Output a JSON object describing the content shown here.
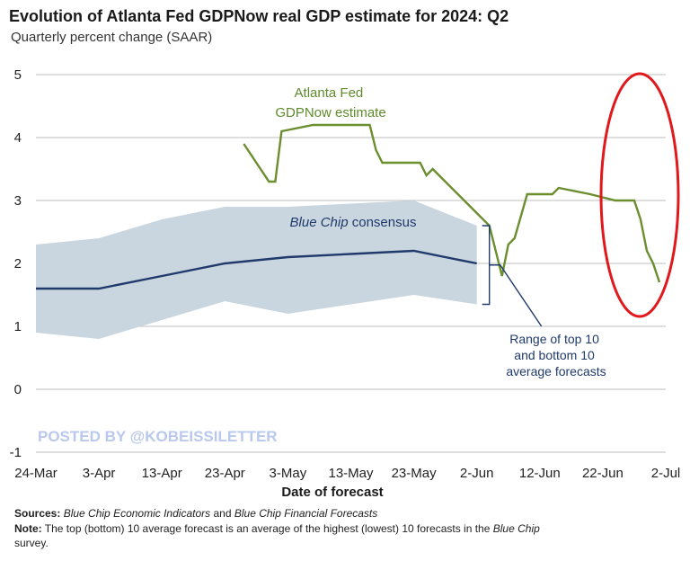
{
  "title": "Evolution of Atlanta Fed GDPNow real GDP estimate for 2024: Q2",
  "subtitle": "Quarterly percent change (SAAR)",
  "watermark": "POSTED BY @KOBEISSILETTER",
  "footer": {
    "sources_label": "Sources:",
    "sources_text_1": "Blue Chip Economic Indicators",
    "sources_and": "and",
    "sources_text_2": "Blue Chip Financial Forecasts",
    "note_label": "Note:",
    "note_text_1": "The top (bottom) 10 average forecast is an average of the highest (lowest) 10 forecasts in the",
    "note_italic": "Blue Chip",
    "note_text_2": "survey."
  },
  "colors": {
    "gdpnow": "#6b8e2f",
    "consensus": "#1f3a6b",
    "band": "#c9d6df",
    "annotation_ring": "#e0191c"
  },
  "chart_data": {
    "type": "line",
    "xlabel": "Date of forecast",
    "ylabel": "",
    "x_ticks": [
      "24-Mar",
      "3-Apr",
      "13-Apr",
      "23-Apr",
      "3-May",
      "13-May",
      "23-May",
      "2-Jun",
      "12-Jun",
      "22-Jun",
      "2-Jul"
    ],
    "y_ticks": [
      -1,
      0,
      1,
      2,
      3,
      4,
      5
    ],
    "ylim": [
      -1,
      5
    ],
    "grid": true,
    "series": [
      {
        "name": "Atlanta Fed GDPNow estimate",
        "label_lines": [
          "Atlanta Fed",
          "GDPNow estimate"
        ],
        "x": [
          "2024-04-26",
          "2024-04-30",
          "2024-05-01",
          "2024-05-02",
          "2024-05-07",
          "2024-05-09",
          "2024-05-16",
          "2024-05-17",
          "2024-05-18",
          "2024-05-24",
          "2024-05-25",
          "2024-05-26",
          "2024-05-28",
          "2024-05-31",
          "2024-06-04",
          "2024-06-06",
          "2024-06-07",
          "2024-06-08",
          "2024-06-10",
          "2024-06-14",
          "2024-06-15",
          "2024-06-20",
          "2024-06-24",
          "2024-06-27",
          "2024-06-28",
          "2024-06-29",
          "2024-06-30",
          "2024-07-01"
        ],
        "y": [
          3.9,
          3.3,
          3.3,
          4.1,
          4.2,
          4.2,
          4.2,
          3.8,
          3.6,
          3.6,
          3.4,
          3.5,
          3.3,
          3.0,
          2.6,
          1.8,
          2.3,
          2.4,
          3.1,
          3.1,
          3.2,
          3.1,
          3.0,
          3.0,
          2.7,
          2.2,
          2.0,
          1.7
        ]
      },
      {
        "name": "Blue Chip consensus",
        "label_rich": {
          "italic": "Blue Chip",
          "rest": " consensus"
        },
        "x": [
          "2024-03-24",
          "2024-04-03",
          "2024-04-13",
          "2024-04-23",
          "2024-05-03",
          "2024-05-13",
          "2024-05-23",
          "2024-06-02"
        ],
        "y": [
          1.6,
          1.6,
          1.8,
          2.0,
          2.1,
          2.15,
          2.2,
          2.0
        ]
      }
    ],
    "band": {
      "name": "Range of top 10 and bottom 10 average forecasts",
      "label_lines": [
        "Range of top 10",
        "and bottom 10",
        "average forecasts"
      ],
      "x": [
        "2024-03-24",
        "2024-04-03",
        "2024-04-13",
        "2024-04-23",
        "2024-05-03",
        "2024-05-13",
        "2024-05-23",
        "2024-06-02"
      ],
      "upper": [
        2.3,
        2.4,
        2.7,
        2.9,
        2.9,
        2.95,
        3.0,
        2.6
      ],
      "lower": [
        0.9,
        0.8,
        1.1,
        1.4,
        1.2,
        1.35,
        1.5,
        1.35
      ]
    }
  }
}
